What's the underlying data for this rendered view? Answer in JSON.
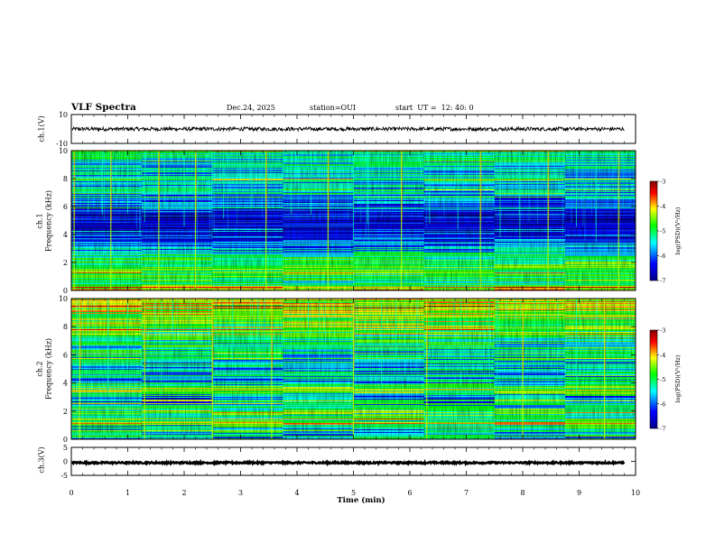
{
  "header": {
    "title": "VLF Spectra",
    "date": "Dec.24, 2025",
    "station": "station=OUI",
    "start": "start  UT =  12: 40: 0"
  },
  "colors": {
    "cmap": [
      "#00008a",
      "#0000ff",
      "#00ffff",
      "#00ff00",
      "#ffff00",
      "#ff0000",
      "#800000"
    ],
    "background": "#ffffff",
    "axis": "#000000"
  },
  "chart_data": [
    {
      "type": "line",
      "panel": "ch1-waveform",
      "ylabel": "ch.1(V)",
      "ylim": [
        -10,
        10
      ],
      "ytick_labels": [
        "10",
        "-10"
      ],
      "mean_value": 0,
      "duration_min": 9.8
    },
    {
      "type": "heatmap",
      "panel": "ch1-spectrogram",
      "ylabel": "ch.1\nFrequency (kHz)",
      "ylabel_lines": [
        "ch.1",
        "Frequency (kHz)"
      ],
      "ylim": [
        0,
        10
      ],
      "ytick_labels": [
        "0",
        "2",
        "4",
        "6",
        "8",
        "10"
      ],
      "colorbar": {
        "label": "log(PSD)(V²/Hz)",
        "range": [
          -7,
          -3
        ],
        "tick_labels": [
          "-3",
          "-4",
          "-5",
          "-6",
          "-7"
        ]
      },
      "band_levels_by_frequency": {
        "freq_khz": [
          0,
          0.5,
          1,
          1.5,
          2,
          2.5,
          3,
          4,
          5,
          6,
          7,
          8,
          9,
          10
        ],
        "log_psd": [
          -4.2,
          -5.4,
          -5.2,
          -4.9,
          -5.1,
          -5.4,
          -5.8,
          -6.4,
          -6.7,
          -6.2,
          -5.8,
          -5.7,
          -5.6,
          -5.3
        ]
      },
      "impulsive_events_min": [
        0.05,
        0.3,
        0.55,
        0.7,
        1.0,
        1.3,
        1.55,
        1.65,
        2.0,
        2.2,
        2.7,
        3.2,
        3.45,
        3.9,
        4.25,
        4.55,
        5.0,
        5.25,
        5.85,
        6.35,
        6.85,
        7.25,
        7.6,
        7.95,
        8.45,
        8.95,
        9.3,
        9.7
      ]
    },
    {
      "type": "heatmap",
      "panel": "ch2-spectrogram",
      "ylabel": "ch.2\nFrequency (kHz)",
      "ylabel_lines": [
        "ch.2",
        "Frequency (kHz)"
      ],
      "ylim": [
        0,
        10
      ],
      "ytick_labels": [
        "0",
        "2",
        "4",
        "6",
        "8",
        "10"
      ],
      "colorbar": {
        "label": "log(PSD)(V²/Hz)",
        "range": [
          -7,
          -3
        ],
        "tick_labels": [
          "-3",
          "-4",
          "-5",
          "-6",
          "-7"
        ]
      },
      "band_levels_by_frequency": {
        "freq_khz": [
          0,
          0.5,
          1,
          1.5,
          2,
          2.5,
          3,
          3.5,
          4,
          5,
          6,
          7,
          8,
          9,
          10
        ],
        "log_psd": [
          -5.6,
          -5.7,
          -5.4,
          -5.2,
          -5.1,
          -5.6,
          -6.0,
          -4.6,
          -5.7,
          -5.6,
          -5.5,
          -5.3,
          -4.8,
          -4.6,
          -4.5
        ]
      },
      "impulsive_events_min": [
        0.15,
        0.65,
        1.0,
        1.3,
        1.6,
        1.8,
        2.5,
        2.85,
        3.3,
        3.55,
        4.2,
        4.4,
        5.0,
        5.5,
        5.75,
        6.3,
        6.9,
        7.55,
        8.0,
        8.45,
        8.95,
        9.45
      ]
    },
    {
      "type": "line",
      "panel": "ch3-waveform",
      "ylabel": "ch.3(V)",
      "ylim": [
        -5,
        5
      ],
      "ytick_labels": [
        "5",
        "0",
        "-5"
      ],
      "mean_value": -0.5,
      "duration_min": 9.8
    }
  ],
  "xaxis": {
    "label": "Time (min)",
    "range": [
      0,
      10
    ],
    "tick_labels": [
      "0",
      "1",
      "2",
      "3",
      "4",
      "5",
      "6",
      "7",
      "8",
      "9",
      "10"
    ]
  }
}
